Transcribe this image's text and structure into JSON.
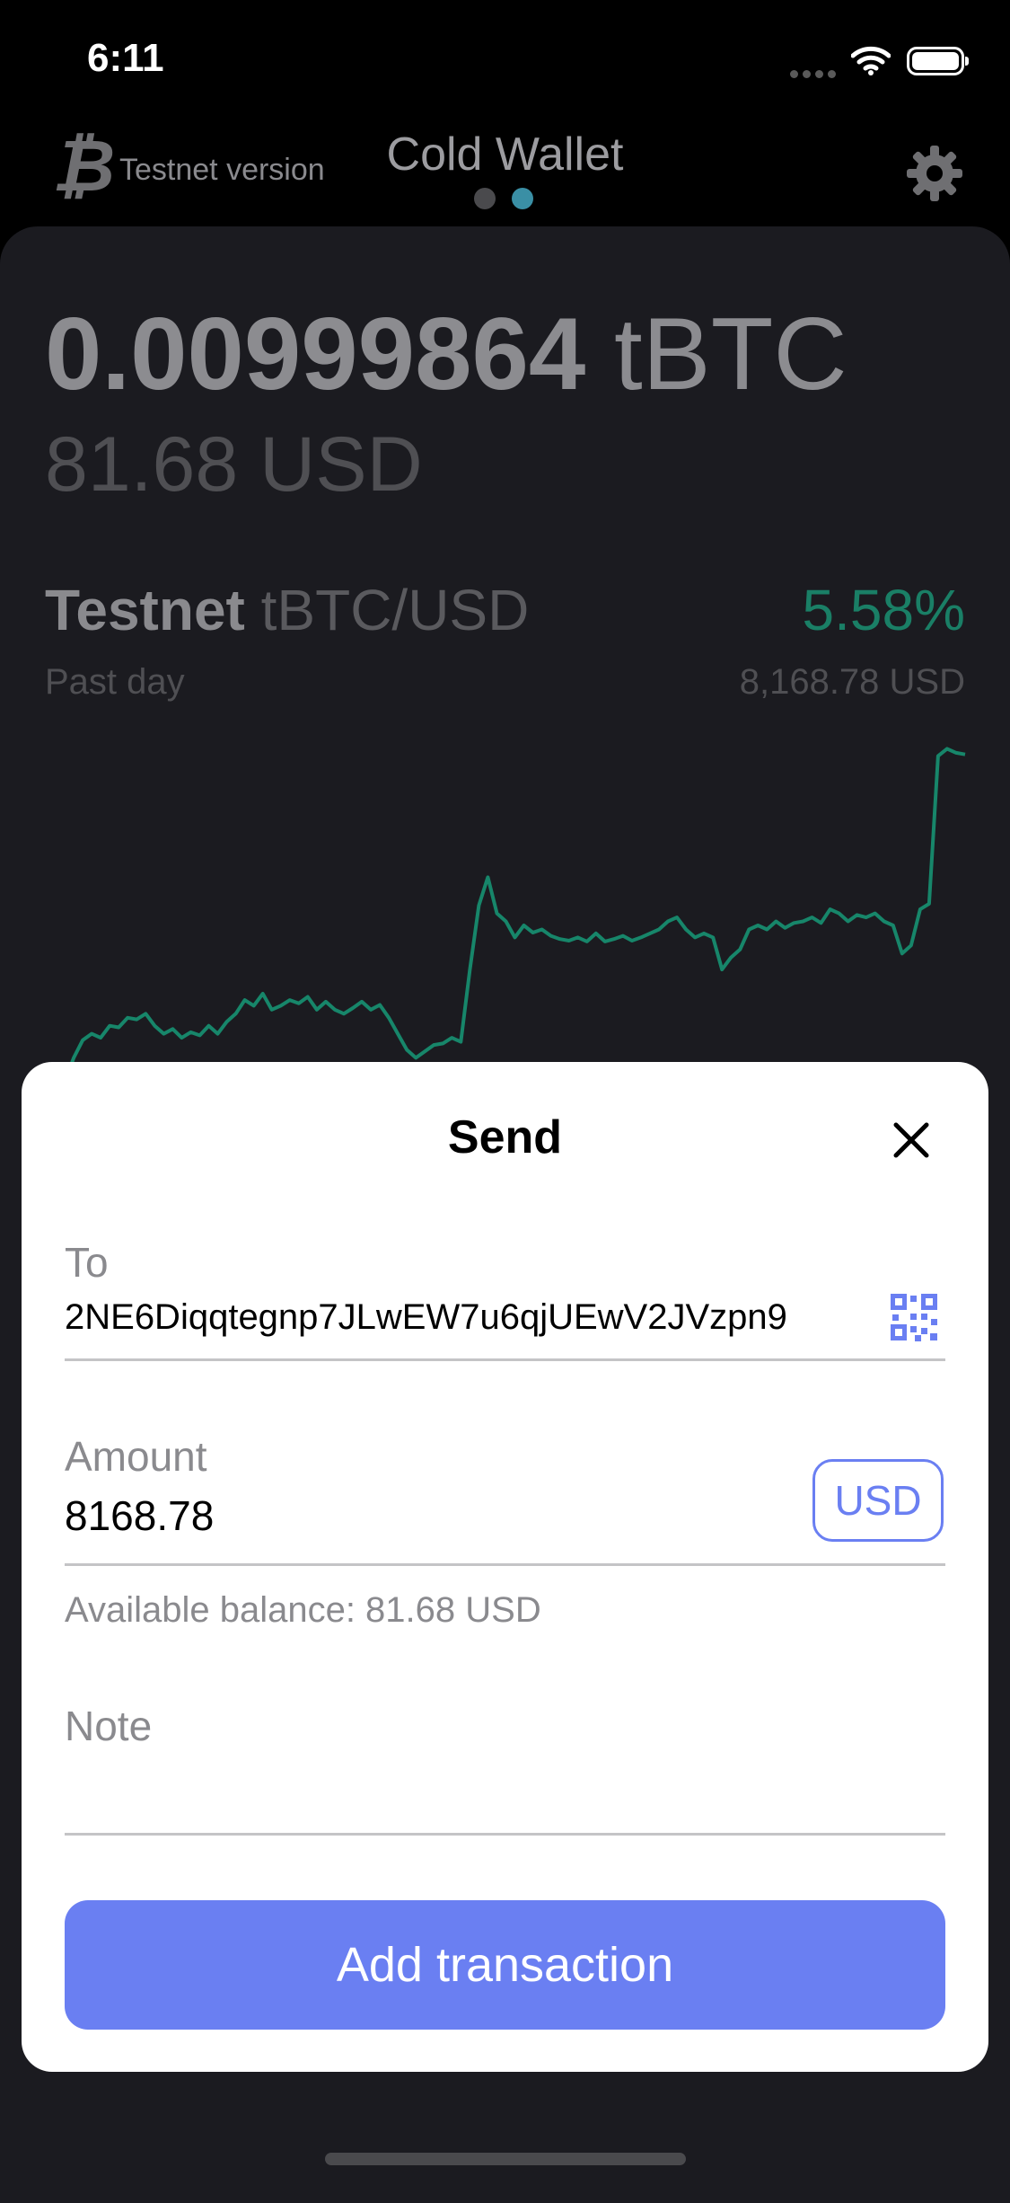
{
  "status_bar": {
    "time": "6:11"
  },
  "header": {
    "network_label": "Testnet version",
    "title": "Cold Wallet",
    "page_count": 2,
    "active_page": 2
  },
  "wallet": {
    "balance_amount": "0.00999864",
    "balance_unit": "tBTC",
    "balance_fiat": "81.68 USD",
    "pair_network": "Testnet",
    "pair": "tBTC/USD",
    "change_percent": "5.58%",
    "period": "Past day",
    "price": "8,168.78 USD"
  },
  "chart_data": {
    "type": "line",
    "series": [
      {
        "values": [
          7736,
          7760,
          7790,
          7812,
          7820,
          7815,
          7830,
          7828,
          7840,
          7838,
          7845,
          7830,
          7820,
          7826,
          7815,
          7822,
          7818,
          7830,
          7820,
          7835,
          7845,
          7862,
          7855,
          7870,
          7850,
          7855,
          7862,
          7858,
          7866,
          7850,
          7860,
          7850,
          7845,
          7852,
          7860,
          7850,
          7856,
          7840,
          7820,
          7800,
          7790,
          7798,
          7806,
          7808,
          7815,
          7810,
          7900,
          7980,
          8015,
          7970,
          7960,
          7940,
          7955,
          7946,
          7950,
          7942,
          7938,
          7936,
          7940,
          7935,
          7945,
          7935,
          7938,
          7942,
          7936,
          7940,
          7945,
          7950,
          7960,
          7965,
          7950,
          7940,
          7945,
          7940,
          7900,
          7915,
          7925,
          7950,
          7955,
          7950,
          7960,
          7952,
          7958,
          7960,
          7965,
          7958,
          7975,
          7970,
          7960,
          7968,
          7965,
          7970,
          7960,
          7955,
          7920,
          7930,
          7975,
          7982,
          8166,
          8175,
          8170,
          8168
        ]
      }
    ],
    "ylim": [
      7720,
      8190
    ],
    "grid": false,
    "color": "#17866a"
  },
  "send": {
    "title": "Send",
    "to_label": "To",
    "to_value": "2NE6Diqqtegnp7JLwEW7u6qjUEwV2JVzpn9",
    "amount_label": "Amount",
    "amount_value": "8168.78",
    "currency": "USD",
    "balance_hint": "Available balance: 81.68 USD",
    "note_label": "Note",
    "note_value": "",
    "submit_label": "Add transaction"
  },
  "colors": {
    "accent": "#6a7ff2",
    "positive": "#1a7f66",
    "page_dot_active": "#3a8fa5"
  }
}
